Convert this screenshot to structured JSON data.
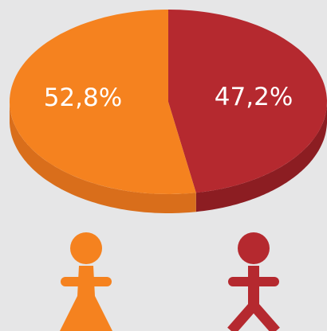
{
  "chart_data": {
    "type": "pie",
    "categories": [
      null,
      null
    ],
    "values": [
      47.2,
      52.8
    ],
    "value_labels": [
      "47,2%",
      "52,8%"
    ],
    "colors": [
      "#b5292f",
      "#f5821f"
    ],
    "side_colors": [
      "#8c1d22",
      "#d96e1b"
    ]
  }
}
